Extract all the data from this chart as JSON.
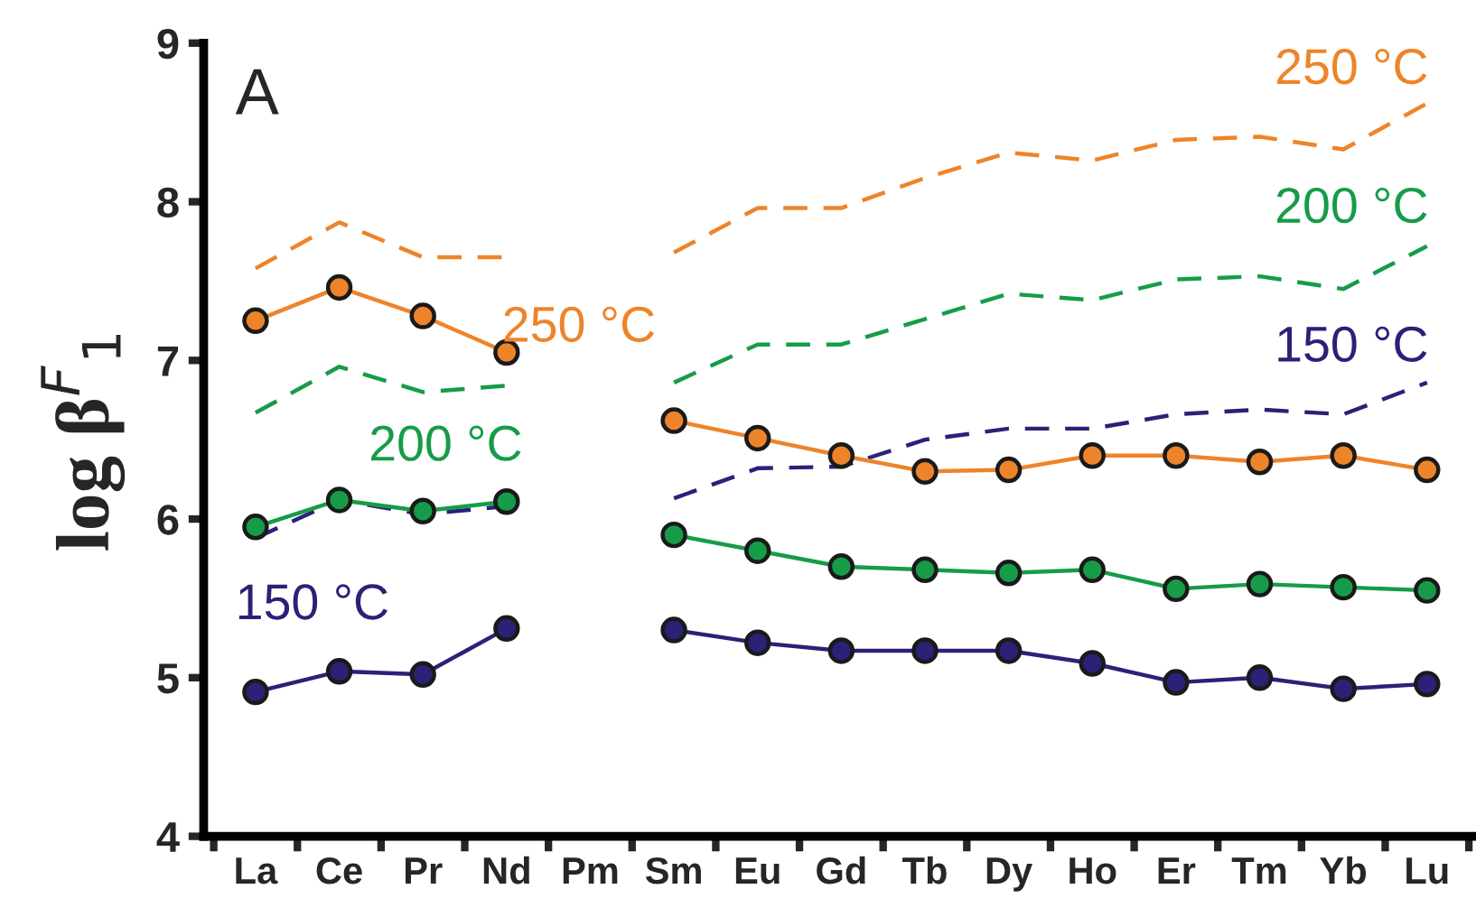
{
  "chart_data": {
    "type": "line",
    "ylabel": "log β$^{F}$$_{1}$",
    "annotations": [
      "A"
    ],
    "categories": [
      "La",
      "Ce",
      "Pr",
      "Nd",
      "Pm",
      "Sm",
      "Eu",
      "Gd",
      "Tb",
      "Dy",
      "Ho",
      "Er",
      "Tm",
      "Yb",
      "Lu"
    ],
    "ylim": [
      4,
      9
    ],
    "yticks": [
      4,
      5,
      6,
      7,
      8,
      9
    ],
    "grid": false,
    "legend": false,
    "series": [
      {
        "name": "250 °C",
        "color": "#ee8429",
        "marker": "none",
        "line_style": "dashed",
        "values": [
          7.58,
          7.87,
          7.65,
          7.65,
          null,
          7.68,
          7.96,
          7.96,
          8.15,
          8.31,
          8.26,
          8.39,
          8.41,
          8.33,
          8.62
        ]
      },
      {
        "name": "200 °C",
        "color": "#169c48",
        "marker": "none",
        "line_style": "dashed",
        "values": [
          6.67,
          6.96,
          6.8,
          6.84,
          null,
          6.86,
          7.1,
          7.1,
          7.26,
          7.42,
          7.38,
          7.51,
          7.53,
          7.45,
          7.72
        ]
      },
      {
        "name": "150 °C",
        "color": "#2b2177",
        "marker": "none",
        "line_style": "dashed",
        "values": [
          5.88,
          6.12,
          6.03,
          6.08,
          null,
          6.13,
          6.32,
          6.33,
          6.5,
          6.57,
          6.57,
          6.66,
          6.69,
          6.66,
          6.86
        ]
      },
      {
        "name": "250 °C",
        "color": "#ee8429",
        "marker": "circle",
        "line_style": "solid",
        "values": [
          7.25,
          7.46,
          7.28,
          7.05,
          null,
          6.62,
          6.51,
          6.4,
          6.3,
          6.31,
          6.4,
          6.4,
          6.36,
          6.4,
          6.31
        ]
      },
      {
        "name": "200 °C",
        "color": "#169c48",
        "marker": "circle",
        "line_style": "solid",
        "values": [
          5.95,
          6.12,
          6.05,
          6.11,
          null,
          5.9,
          5.8,
          5.7,
          5.68,
          5.66,
          5.68,
          5.56,
          5.59,
          5.57,
          5.55
        ]
      },
      {
        "name": "150 °C",
        "color": "#2b2177",
        "marker": "circle",
        "line_style": "solid",
        "values": [
          4.91,
          5.04,
          5.02,
          5.31,
          null,
          5.3,
          5.22,
          5.17,
          5.17,
          5.17,
          5.09,
          4.97,
          5.0,
          4.93,
          4.96
        ]
      }
    ]
  }
}
